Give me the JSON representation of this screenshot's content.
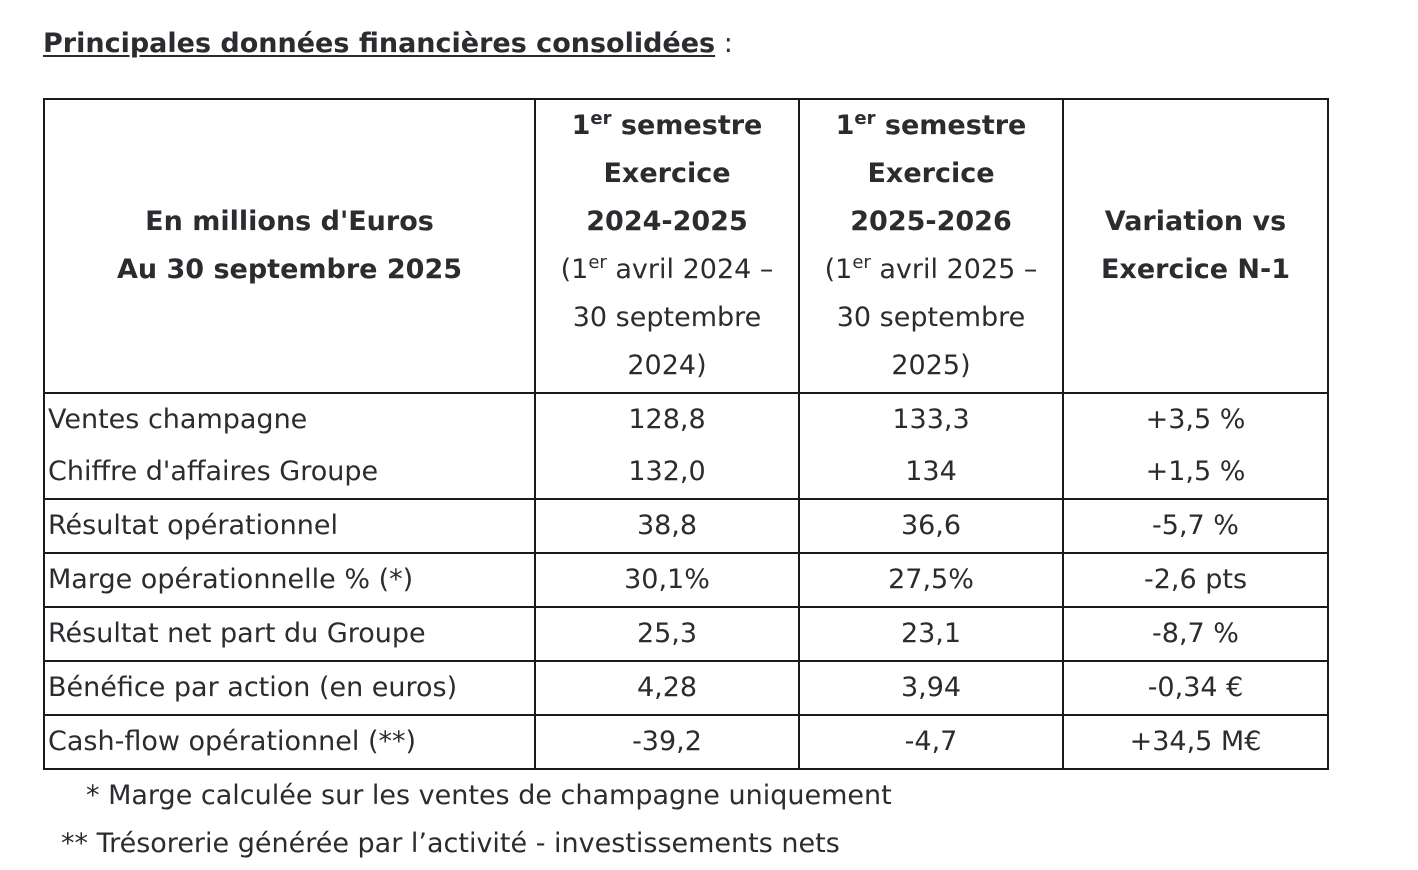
{
  "title": "Principales données financières consolidées",
  "title_suffix": " :",
  "header": {
    "col0_line1": "En millions d'Euros",
    "col0_line2": "Au 30 septembre 2025",
    "col1": {
      "ord_num": "1",
      "ord_sup": "er",
      "ord_word": " semestre",
      "exercice": "Exercice",
      "years": "2024-2025",
      "range_open": "(1",
      "range_sup": "er",
      "range_rest1": " avril 2024 –",
      "range_rest2": "30 septembre",
      "range_rest3": "2024)"
    },
    "col2": {
      "ord_num": "1",
      "ord_sup": "er",
      "ord_word": " semestre",
      "exercice": "Exercice",
      "years": "2025-2026",
      "range_open": "(1",
      "range_sup": "er",
      "range_rest1": " avril 2025 –",
      "range_rest2": "30 septembre",
      "range_rest3": "2025)"
    },
    "col3_line1": "Variation vs",
    "col3_line2": "Exercice N-1"
  },
  "rows": [
    {
      "label": "Ventes champagne",
      "v1": "128,8",
      "v2": "133,3",
      "var": "+3,5 %"
    },
    {
      "label": "Chiffre d'affaires Groupe",
      "v1": "132,0",
      "v2": "134",
      "var": "+1,5 %"
    },
    {
      "label": "Résultat opérationnel",
      "v1": "38,8",
      "v2": "36,6",
      "var": "-5,7 %"
    },
    {
      "label": "Marge opérationnelle % (*)",
      "v1": "30,1%",
      "v2": "27,5%",
      "var": "-2,6 pts"
    },
    {
      "label": "Résultat net part du Groupe",
      "v1": "25,3",
      "v2": "23,1",
      "var": "-8,7 %"
    },
    {
      "label": "Bénéfice par action (en euros)",
      "v1": "4,28",
      "v2": "3,94",
      "var": "-0,34 €"
    },
    {
      "label": "Cash-flow opérationnel (**)",
      "v1": "-39,2",
      "v2": "-4,7",
      "var": "+34,5 M€"
    }
  ],
  "footnotes": {
    "note1": "* Marge calculée sur les ventes de champagne uniquement",
    "note2": "** Trésorerie générée par l’activité - investissements nets"
  }
}
